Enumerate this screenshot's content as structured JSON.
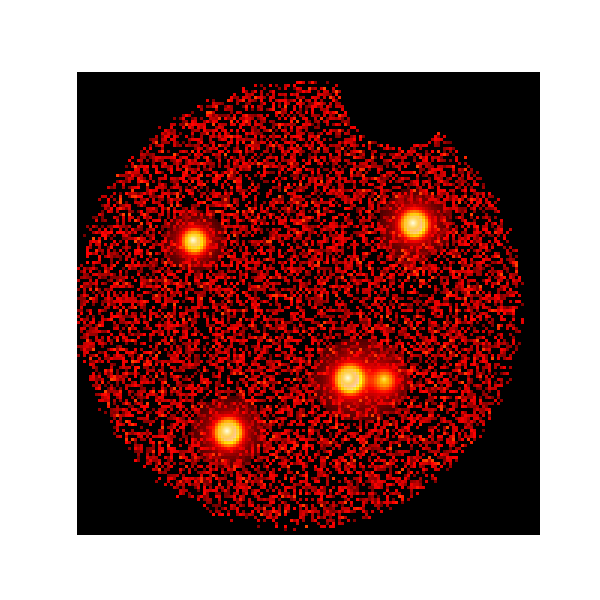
{
  "image": {
    "kind": "x-ray-heatmap",
    "colormap": "hot",
    "background_color": "#000000",
    "page_color": "#ffffff",
    "sources": [
      {
        "name": "source-upper-left",
        "brightness": 0.8
      },
      {
        "name": "source-upper-right",
        "brightness": 1.0
      },
      {
        "name": "source-center",
        "brightness": 1.0
      },
      {
        "name": "source-center-faint",
        "brightness": 0.45
      },
      {
        "name": "source-lower-left",
        "brightness": 1.0
      }
    ]
  }
}
